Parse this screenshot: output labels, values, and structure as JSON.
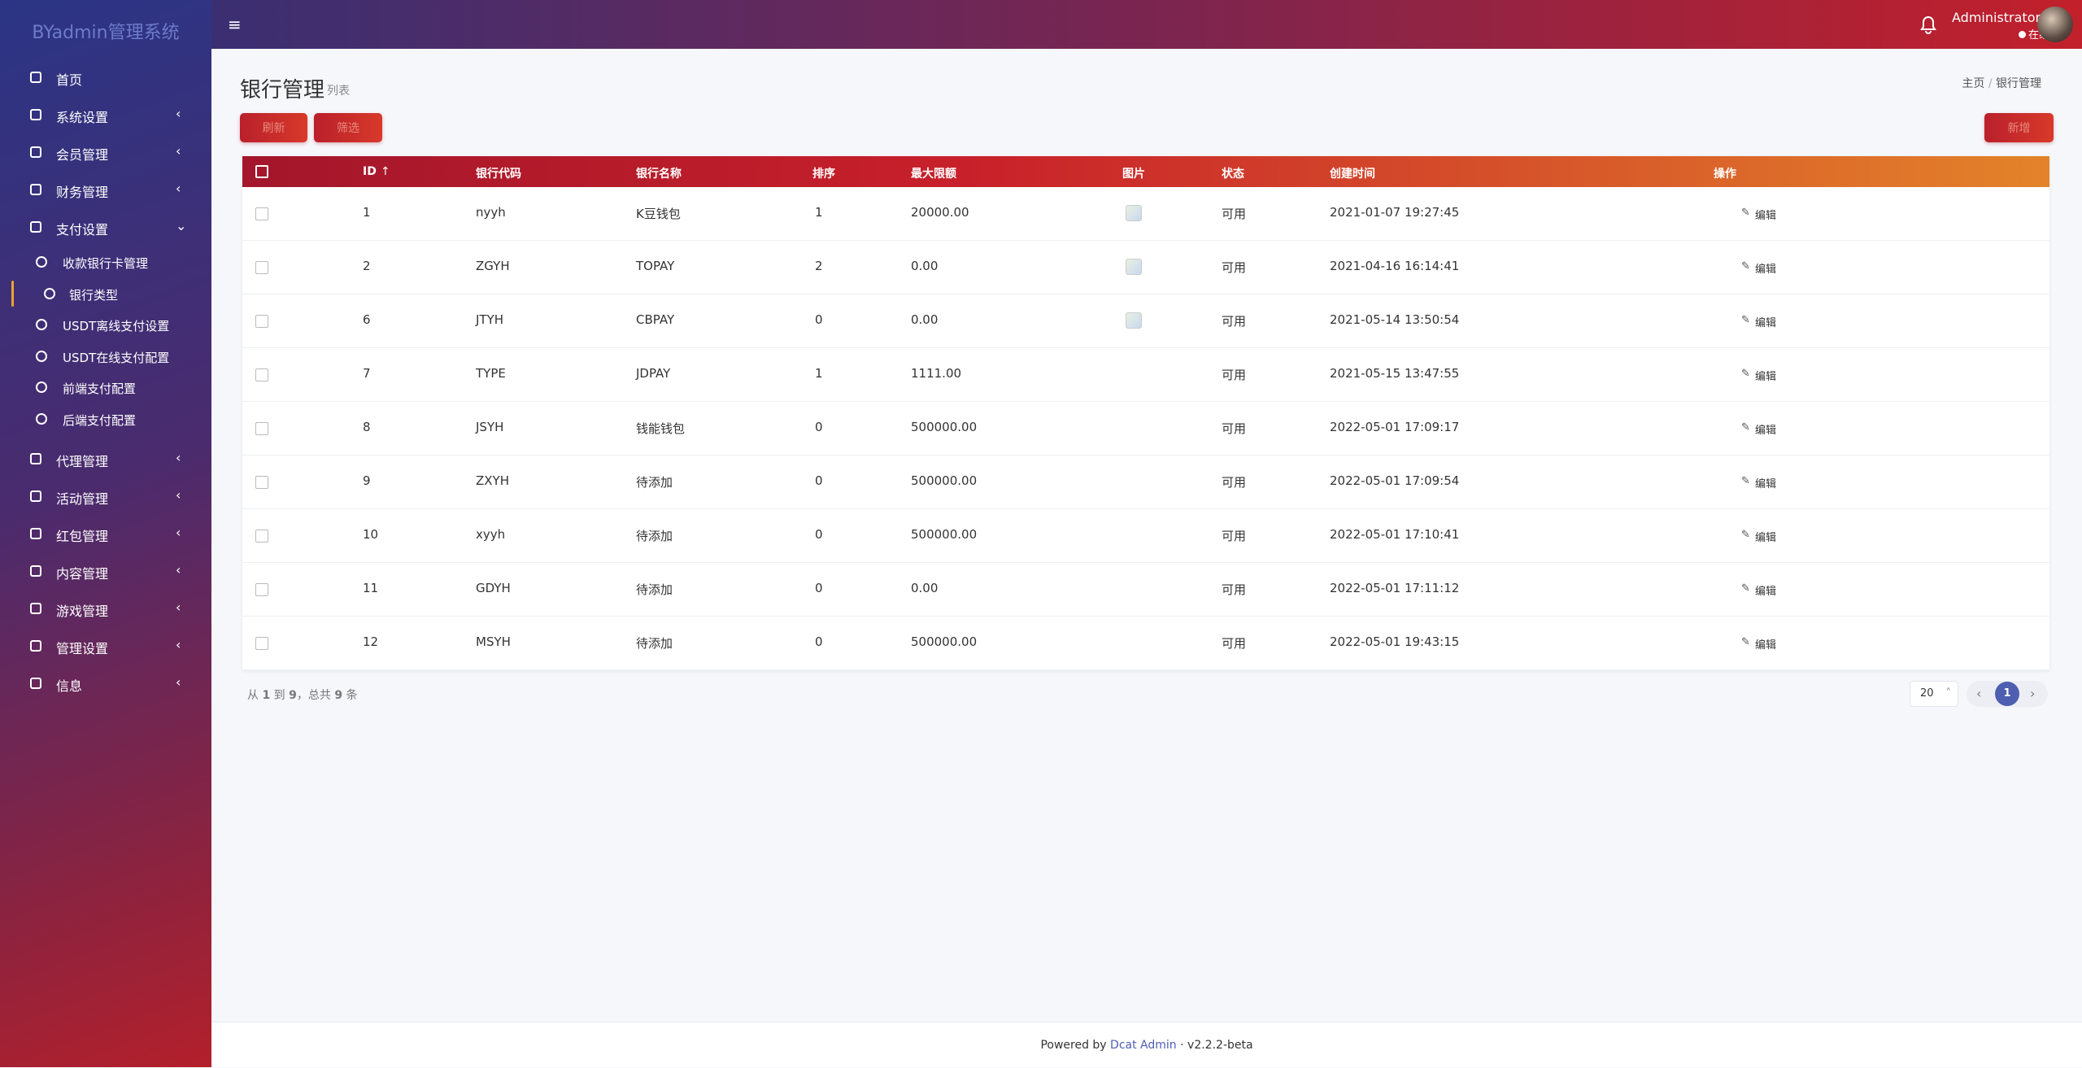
{
  "sidebar": {
    "brand": "BYadmin管理系统",
    "menu": [
      {
        "label": "首页"
      },
      {
        "label": "系统设置"
      },
      {
        "label": "会员管理"
      },
      {
        "label": "财务管理"
      },
      {
        "label": "支付设置",
        "children": [
          "收款银行卡管理",
          "银行类型",
          "USDT离线支付设置",
          "USDT在线支付配置",
          "前端支付配置",
          "后端支付配置"
        ]
      },
      {
        "label": "代理管理"
      },
      {
        "label": "活动管理"
      },
      {
        "label": "红包管理"
      },
      {
        "label": "内容管理"
      },
      {
        "label": "游戏管理"
      },
      {
        "label": "管理设置"
      },
      {
        "label": "信息"
      }
    ]
  },
  "header": {
    "user": "Administrator",
    "status": "在线"
  },
  "page": {
    "title": "银行管理",
    "subtitle": "列表",
    "breadcrumb": [
      "主页",
      "银行管理"
    ]
  },
  "toolbar": {
    "refresh": "刷新",
    "filter": "筛选",
    "create": "新增"
  },
  "table": {
    "columns": [
      "ID",
      "银行代码",
      "银行名称",
      "排序",
      "最大限额",
      "图片",
      "状态",
      "创建时间",
      "操作"
    ],
    "rows": [
      [
        1,
        "nyyh",
        "K豆钱包",
        1,
        "20000.00",
        true,
        "可用",
        "2021-01-07 19:27:45",
        "编辑"
      ],
      [
        2,
        "ZGYH",
        "TOPAY",
        2,
        "0.00",
        true,
        "可用",
        "2021-04-16 16:14:41",
        "编辑"
      ],
      [
        6,
        "JTYH",
        "CBPAY",
        0,
        "0.00",
        true,
        "可用",
        "2021-05-14 13:50:54",
        "编辑"
      ],
      [
        7,
        "TYPE",
        "JDPAY",
        1,
        "1111.00",
        false,
        "可用",
        "2021-05-15 13:47:55",
        "编辑"
      ],
      [
        8,
        "JSYH",
        "钱能钱包",
        0,
        "500000.00",
        false,
        "可用",
        "2022-05-01 17:09:17",
        "编辑"
      ],
      [
        9,
        "ZXYH",
        "待添加",
        0,
        "500000.00",
        false,
        "可用",
        "2022-05-01 17:09:54",
        "编辑"
      ],
      [
        10,
        "xyyh",
        "待添加",
        0,
        "500000.00",
        false,
        "可用",
        "2022-05-01 17:10:41",
        "编辑"
      ],
      [
        11,
        "GDYH",
        "待添加",
        0,
        "0.00",
        false,
        "可用",
        "2022-05-01 17:11:12",
        "编辑"
      ],
      [
        12,
        "MSYH",
        "待添加",
        0,
        "500000.00",
        false,
        "可用",
        "2022-05-01 19:43:15",
        "编辑"
      ]
    ]
  },
  "pagination": {
    "from_label": "从",
    "from": 1,
    "to_label": "到",
    "to": 9,
    "total_label": "，总共",
    "total": 9,
    "unit": "条",
    "per_page": 20,
    "current": 1
  },
  "footer": {
    "prefix": "Powered by",
    "link": "Dcat Admin",
    "separator": "·",
    "version": "v2.2.2-beta"
  }
}
